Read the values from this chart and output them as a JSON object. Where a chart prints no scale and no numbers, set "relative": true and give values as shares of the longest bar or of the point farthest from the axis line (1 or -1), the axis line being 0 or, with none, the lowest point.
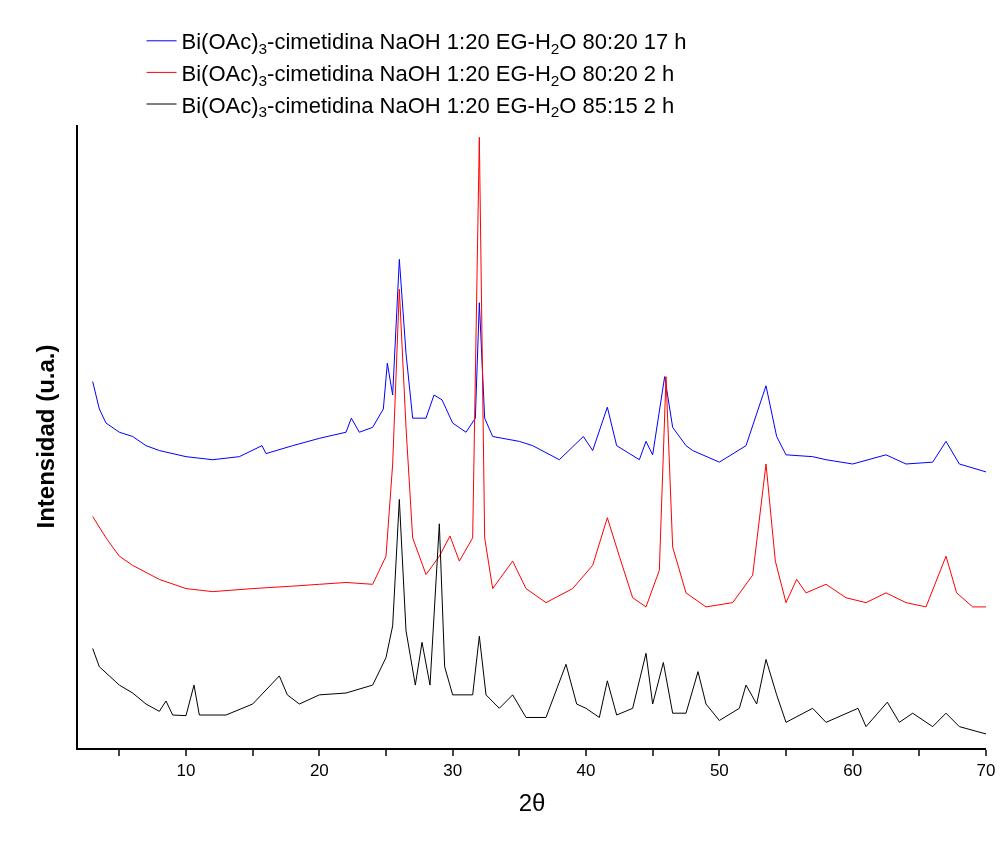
{
  "chart_data": {
    "type": "line",
    "relative": true,
    "xlabel": "2θ",
    "ylabel": "Intensidad (u.a.)",
    "xlim": [
      1.9,
      70
    ],
    "xticks": [
      {
        "value": 5,
        "label": null
      },
      10,
      {
        "value": 15,
        "label": null
      },
      20,
      {
        "value": 25,
        "label": null
      },
      30,
      {
        "value": 35,
        "label": null
      },
      40,
      {
        "value": 45,
        "label": null
      },
      50,
      {
        "value": 55,
        "label": null
      },
      60,
      {
        "value": 65,
        "label": null
      },
      70
    ],
    "legend": "top",
    "marker": "none",
    "line_style": "solid",
    "tick_labels": "x",
    "series": [
      {
        "name": "Bi(OAc)$_{3}$-cimetidina NaOH 1:20 EG-H$_{2}$O 80:20 17 h",
        "color": "#0000ff",
        "x": [
          3,
          3.5,
          4,
          5,
          6,
          7,
          8,
          10,
          12,
          14,
          15.7,
          16,
          18,
          20,
          22,
          22.4,
          23,
          24,
          24.8,
          25.1,
          25.5,
          26,
          26.5,
          27,
          28,
          28.6,
          29.2,
          30,
          31,
          31.7,
          32,
          32.4,
          33,
          35,
          36,
          38,
          39.8,
          40.5,
          41.6,
          42.3,
          44,
          44.5,
          45,
          45.9,
          46.5,
          47.5,
          48,
          50,
          52,
          53.5,
          54.3,
          55,
          57,
          58,
          60,
          62.5,
          64,
          66,
          67,
          68,
          70
        ],
        "values": [
          0.6,
          0.555,
          0.532,
          0.517,
          0.51,
          0.495,
          0.487,
          0.477,
          0.472,
          0.477,
          0.495,
          0.482,
          0.495,
          0.507,
          0.517,
          0.54,
          0.517,
          0.525,
          0.555,
          0.63,
          0.578,
          0.8,
          0.646,
          0.54,
          0.54,
          0.578,
          0.57,
          0.532,
          0.517,
          0.54,
          0.729,
          0.54,
          0.51,
          0.502,
          0.495,
          0.472,
          0.51,
          0.487,
          0.558,
          0.495,
          0.472,
          0.502,
          0.48,
          0.608,
          0.525,
          0.495,
          0.487,
          0.468,
          0.495,
          0.593,
          0.51,
          0.48,
          0.477,
          0.472,
          0.465,
          0.48,
          0.465,
          0.468,
          0.502,
          0.465,
          0.452
        ]
      },
      {
        "name": "Bi(OAc)$_{3}$-cimetidina NaOH 1:20 EG-H$_{2}$O 80:20 2 h",
        "color": "#ff0000",
        "x": [
          3,
          4,
          5,
          6,
          8,
          10,
          12,
          15,
          18,
          20,
          22,
          24,
          25,
          25.5,
          26,
          26.5,
          27,
          28,
          29,
          29.8,
          30.5,
          31.5,
          32,
          32.4,
          33,
          34.5,
          35.5,
          37,
          39,
          40.5,
          41.6,
          42.5,
          43.5,
          44.5,
          45.5,
          46,
          46.5,
          47.5,
          49,
          51,
          52.5,
          53.5,
          54.2,
          55,
          55.8,
          56.5,
          58,
          59.5,
          61,
          62.5,
          64,
          65.5,
          67,
          67.8,
          69,
          70
        ],
        "values": [
          0.379,
          0.344,
          0.314,
          0.299,
          0.276,
          0.261,
          0.256,
          0.261,
          0.265,
          0.268,
          0.271,
          0.268,
          0.314,
          0.465,
          0.751,
          0.525,
          0.344,
          0.284,
          0.314,
          0.347,
          0.306,
          0.344,
          1.0,
          0.344,
          0.261,
          0.306,
          0.261,
          0.238,
          0.261,
          0.299,
          0.377,
          0.314,
          0.246,
          0.231,
          0.291,
          0.608,
          0.329,
          0.254,
          0.231,
          0.238,
          0.283,
          0.465,
          0.306,
          0.238,
          0.276,
          0.254,
          0.268,
          0.246,
          0.238,
          0.254,
          0.238,
          0.231,
          0.314,
          0.254,
          0.231,
          0.231
        ]
      },
      {
        "name": "Bi(OAc)$_{3}$-cimetidina NaOH 1:20 EG-H$_{2}$O 85:15 2 h",
        "color": "#000000",
        "x": [
          3,
          3.5,
          5,
          6,
          7,
          8,
          8.5,
          9,
          10,
          10.6,
          11,
          13,
          15,
          17,
          17.6,
          18.5,
          20,
          22,
          24,
          25,
          25.5,
          26,
          26.5,
          27.2,
          27.7,
          28.3,
          29,
          29.4,
          30,
          31.5,
          32,
          32.5,
          33.5,
          34.5,
          35.5,
          37,
          38.5,
          39.3,
          40,
          41,
          41.6,
          42.3,
          43.5,
          44.5,
          45,
          45.8,
          46.5,
          47.5,
          48.4,
          49,
          50,
          51.5,
          52,
          52.8,
          53.5,
          54.3,
          55,
          57,
          58,
          60.4,
          61,
          62.6,
          63.5,
          64.5,
          66,
          67,
          68,
          70
        ],
        "values": [
          0.163,
          0.133,
          0.103,
          0.09,
          0.072,
          0.06,
          0.077,
          0.054,
          0.053,
          0.103,
          0.054,
          0.054,
          0.072,
          0.118,
          0.087,
          0.072,
          0.087,
          0.09,
          0.103,
          0.148,
          0.2,
          0.407,
          0.192,
          0.103,
          0.173,
          0.103,
          0.367,
          0.133,
          0.087,
          0.087,
          0.183,
          0.087,
          0.065,
          0.087,
          0.05,
          0.05,
          0.137,
          0.072,
          0.065,
          0.05,
          0.11,
          0.054,
          0.065,
          0.155,
          0.072,
          0.14,
          0.057,
          0.057,
          0.125,
          0.072,
          0.045,
          0.065,
          0.103,
          0.072,
          0.145,
          0.087,
          0.042,
          0.065,
          0.042,
          0.065,
          0.035,
          0.075,
          0.042,
          0.057,
          0.035,
          0.057,
          0.035,
          0.023
        ]
      }
    ]
  }
}
